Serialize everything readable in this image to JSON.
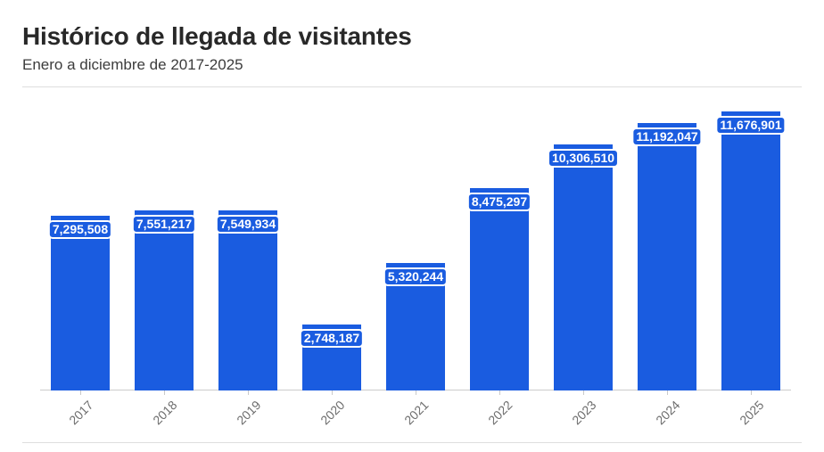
{
  "header": {
    "title": "Histórico de llegada de visitantes",
    "subtitle": "Enero a diciembre de 2017-2025"
  },
  "chart_data": {
    "type": "bar",
    "title": "Histórico de llegada de visitantes",
    "subtitle": "Enero a diciembre de 2017-2025",
    "categories": [
      "2017",
      "2018",
      "2019",
      "2020",
      "2021",
      "2022",
      "2023",
      "2024",
      "2025"
    ],
    "values": [
      7295508,
      7551217,
      7549934,
      2748187,
      5320244,
      8475297,
      10306510,
      11192047,
      11676901
    ],
    "value_labels": [
      "7,295,508",
      "7,551,217",
      "7,549,934",
      "2,748,187",
      "5,320,244",
      "8,475,297",
      "10,306,510",
      "11,192,047",
      "11,676,901"
    ],
    "xlabel": "",
    "ylabel": "",
    "ylim": [
      0,
      11676901
    ],
    "grid": false,
    "legend": "none",
    "value_labels_position": "inside-top",
    "bar_color": "#1A5CE0",
    "value_label_text_color": "#FFFFFF",
    "axis_label_color": "#6E6E6E"
  }
}
